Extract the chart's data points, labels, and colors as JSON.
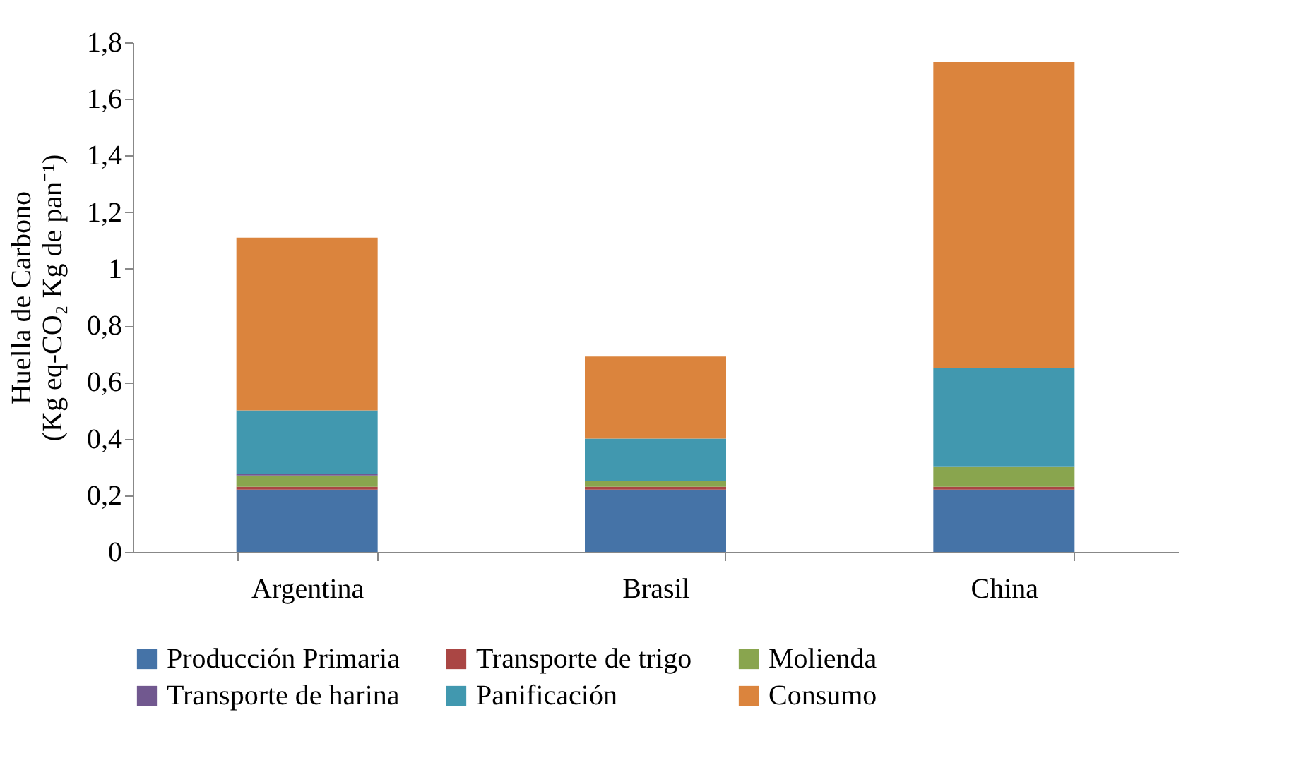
{
  "chart_data": {
    "type": "bar",
    "stacked": true,
    "ylabel": "Huella de Carbono\n(Kg eq-CO₂ Kg de pan⁻¹)",
    "categories": [
      "Argentina",
      "Brasil",
      "China"
    ],
    "series": [
      {
        "name": "Producción Primaria",
        "color": "#4573a7",
        "values": [
          0.22,
          0.22,
          0.22
        ]
      },
      {
        "name": "Transporte de trigo",
        "color": "#aa4644",
        "values": [
          0.01,
          0.01,
          0.01
        ]
      },
      {
        "name": "Molienda",
        "color": "#89a54e",
        "values": [
          0.04,
          0.02,
          0.07
        ]
      },
      {
        "name": "Transporte de harina",
        "color": "#71588f",
        "values": [
          0.005,
          0,
          0
        ]
      },
      {
        "name": "Panificación",
        "color": "#4198af",
        "values": [
          0.225,
          0.15,
          0.35
        ]
      },
      {
        "name": "Consumo",
        "color": "#db843d",
        "values": [
          0.61,
          0.29,
          1.08
        ]
      }
    ],
    "ylim": [
      0,
      1.8
    ],
    "yticks": [
      0,
      {
        "value": 0.2,
        "label": "0,2"
      },
      {
        "value": 0.4,
        "label": "0,4"
      },
      {
        "value": 0.6,
        "label": "0,6"
      },
      {
        "value": 0.8,
        "label": "0,8"
      },
      1,
      {
        "value": 1.2,
        "label": "1,2"
      },
      {
        "value": 1.4,
        "label": "1,4"
      },
      {
        "value": 1.6,
        "label": "1,6"
      },
      {
        "value": 1.8,
        "label": "1,8"
      }
    ],
    "grid": false,
    "legend": "bottom"
  }
}
